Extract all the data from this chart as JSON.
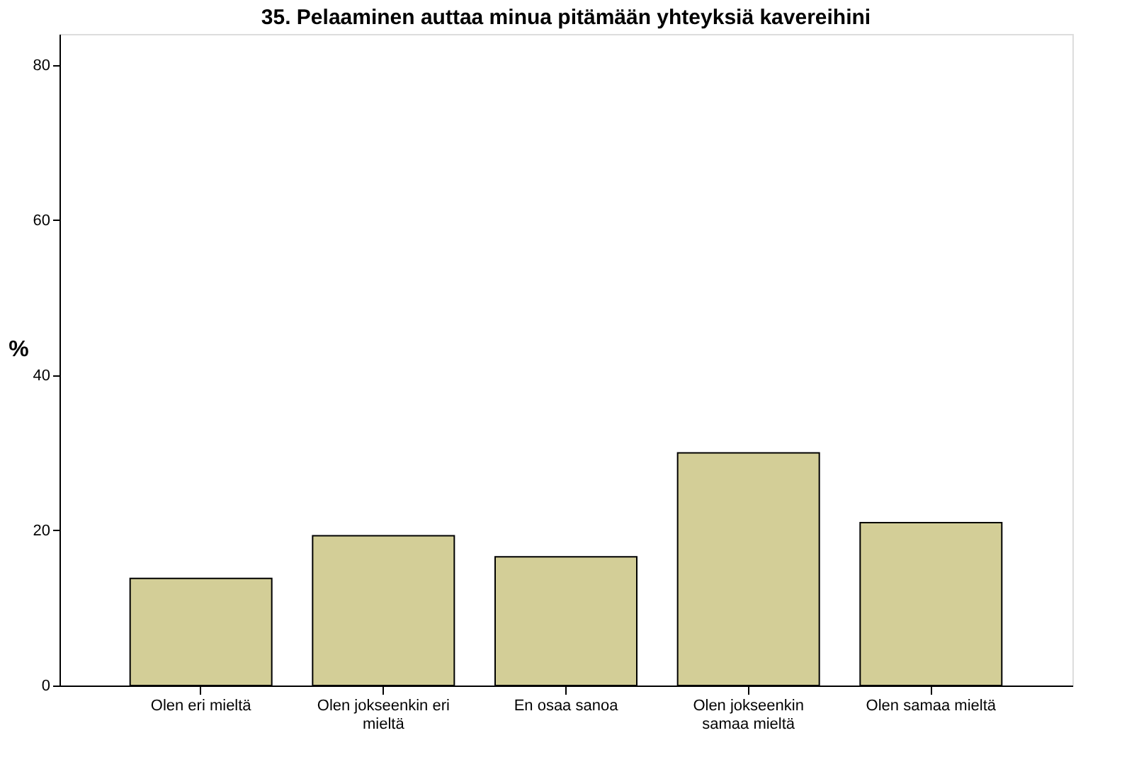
{
  "chart_data": {
    "type": "bar",
    "title": "35. Pelaaminen auttaa minua pitämään yhteyksiä kavereihini",
    "ylabel": "%",
    "categories": [
      "Olen eri mieltä",
      "Olen jokseenkin eri mieltä",
      "En osaa sanoa",
      "Olen jokseenkin samaa mieltä",
      "Olen samaa mieltä"
    ],
    "values": [
      13.8,
      19.3,
      16.6,
      30.0,
      21.0
    ],
    "color": "#d3ce97",
    "ylim": [
      0,
      84
    ],
    "yticks": [
      0,
      20,
      40,
      60,
      80
    ],
    "grid": false
  }
}
